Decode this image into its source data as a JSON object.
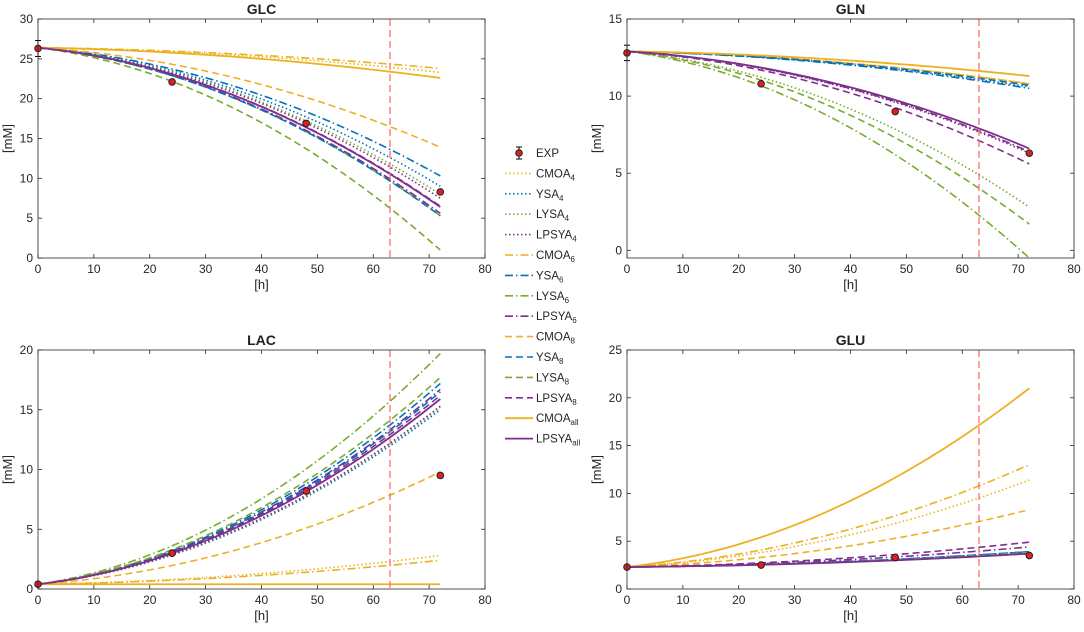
{
  "x_label": "[h]",
  "y_label": "[mM]",
  "x_ticks": [
    0,
    10,
    20,
    30,
    40,
    50,
    60,
    70,
    80
  ],
  "xlim": [
    0,
    80
  ],
  "vline_x": 63,
  "vline_color": "#ff6e6e",
  "exp_marker_color": "#e02020",
  "colors": {
    "cmoa": "#edb120",
    "ysa": "#0072bd",
    "lysa": "#77ac30",
    "lpsya": "#7e2f8e"
  },
  "legend": [
    {
      "base": "EXP",
      "sub": "",
      "color": "#e02020",
      "style": "marker"
    },
    {
      "base": "CMOA",
      "sub": "4",
      "color": "#edb120",
      "style": "dot"
    },
    {
      "base": "YSA",
      "sub": "4",
      "color": "#0072bd",
      "style": "dot"
    },
    {
      "base": "LYSA",
      "sub": "4",
      "color": "#77ac30",
      "style": "dot"
    },
    {
      "base": "LPSYA",
      "sub": "4",
      "color": "#7e2f8e",
      "style": "dot"
    },
    {
      "base": "CMOA",
      "sub": "6",
      "color": "#edb120",
      "style": "dashdot"
    },
    {
      "base": "YSA",
      "sub": "6",
      "color": "#0072bd",
      "style": "dashdot"
    },
    {
      "base": "LYSA",
      "sub": "6",
      "color": "#77ac30",
      "style": "dashdot"
    },
    {
      "base": "LPSYA",
      "sub": "6",
      "color": "#7e2f8e",
      "style": "dashdot"
    },
    {
      "base": "CMOA",
      "sub": "8",
      "color": "#edb120",
      "style": "dash"
    },
    {
      "base": "YSA",
      "sub": "8",
      "color": "#0072bd",
      "style": "dash"
    },
    {
      "base": "LYSA",
      "sub": "8",
      "color": "#77ac30",
      "style": "dash"
    },
    {
      "base": "LPSYA",
      "sub": "8",
      "color": "#7e2f8e",
      "style": "dash"
    },
    {
      "base": "CMOA",
      "sub": "all",
      "color": "#edb120",
      "style": "solid"
    },
    {
      "base": "LPSYA",
      "sub": "all",
      "color": "#7e2f8e",
      "style": "solid"
    }
  ],
  "chart_data": [
    {
      "type": "line",
      "title": "GLC",
      "xlabel": "[h]",
      "ylabel": "[mM]",
      "ylim": [
        0,
        30
      ],
      "y_ticks": [
        0,
        5,
        10,
        15,
        20,
        25,
        30
      ],
      "x": [
        0,
        72
      ],
      "exp": [
        {
          "x": 0,
          "y": 26.3,
          "err": 1.0
        },
        {
          "x": 24,
          "y": 22.1,
          "err": 0
        },
        {
          "x": 48,
          "y": 16.9,
          "err": 0
        },
        {
          "x": 72,
          "y": 8.3,
          "err": 0
        }
      ],
      "series": [
        {
          "name": "CMOA4",
          "model": "CMOA",
          "style": "dot",
          "values": [
            26.4,
            23.3
          ]
        },
        {
          "name": "YSA4",
          "model": "YSA",
          "style": "dot",
          "values": [
            26.4,
            9.0
          ]
        },
        {
          "name": "LYSA4",
          "model": "LYSA",
          "style": "dot",
          "values": [
            26.4,
            8.0
          ]
        },
        {
          "name": "LPSYA4",
          "model": "LPSYA",
          "style": "dot",
          "values": [
            26.4,
            7.5
          ]
        },
        {
          "name": "CMOA6",
          "model": "CMOA",
          "style": "dashdot",
          "values": [
            26.4,
            23.8
          ]
        },
        {
          "name": "YSA6",
          "model": "YSA",
          "style": "dashdot",
          "values": [
            26.4,
            10.3
          ]
        },
        {
          "name": "LYSA6",
          "model": "LYSA",
          "style": "dashdot",
          "values": [
            26.4,
            5.3
          ]
        },
        {
          "name": "LPSYA6",
          "model": "LPSYA",
          "style": "dashdot",
          "values": [
            26.4,
            5.6
          ]
        },
        {
          "name": "CMOA8",
          "model": "CMOA",
          "style": "dash",
          "values": [
            26.4,
            13.9
          ]
        },
        {
          "name": "YSA8",
          "model": "YSA",
          "style": "dash",
          "values": [
            26.4,
            5.3
          ]
        },
        {
          "name": "LYSA8",
          "model": "LYSA",
          "style": "dash",
          "values": [
            26.4,
            1.0
          ]
        },
        {
          "name": "LPSYA8",
          "model": "LPSYA",
          "style": "dash",
          "values": [
            26.4,
            6.5
          ]
        },
        {
          "name": "CMOAall",
          "model": "CMOA",
          "style": "solid",
          "values": [
            26.4,
            22.6
          ]
        },
        {
          "name": "LPSYAall",
          "model": "LPSYA",
          "style": "solid",
          "values": [
            26.4,
            6.4
          ]
        }
      ]
    },
    {
      "type": "line",
      "title": "GLN",
      "xlabel": "[h]",
      "ylabel": "[mM]",
      "ylim": [
        -0.5,
        15
      ],
      "y_ticks": [
        0,
        5,
        10,
        15
      ],
      "x": [
        0,
        72
      ],
      "exp": [
        {
          "x": 0,
          "y": 12.8,
          "err": 0.5
        },
        {
          "x": 24,
          "y": 10.8,
          "err": 0
        },
        {
          "x": 48,
          "y": 9.0,
          "err": 0
        },
        {
          "x": 72,
          "y": 6.3,
          "err": 0
        }
      ],
      "series": [
        {
          "name": "CMOA4",
          "model": "CMOA",
          "style": "dot",
          "values": [
            12.9,
            10.8
          ]
        },
        {
          "name": "YSA4",
          "model": "YSA",
          "style": "dot",
          "values": [
            12.9,
            10.6
          ]
        },
        {
          "name": "LYSA4",
          "model": "LYSA",
          "style": "dot",
          "values": [
            12.9,
            2.8
          ]
        },
        {
          "name": "LPSYA4",
          "model": "LPSYA",
          "style": "dot",
          "values": [
            12.9,
            6.3
          ]
        },
        {
          "name": "CMOA6",
          "model": "CMOA",
          "style": "dashdot",
          "values": [
            12.9,
            10.8
          ]
        },
        {
          "name": "YSA6",
          "model": "YSA",
          "style": "dashdot",
          "values": [
            12.9,
            10.5
          ]
        },
        {
          "name": "LYSA6",
          "model": "LYSA",
          "style": "dashdot",
          "values": [
            12.9,
            -0.5
          ]
        },
        {
          "name": "LPSYA6",
          "model": "LPSYA",
          "style": "dashdot",
          "values": [
            12.9,
            6.4
          ]
        },
        {
          "name": "CMOA8",
          "model": "CMOA",
          "style": "dash",
          "values": [
            12.9,
            10.8
          ]
        },
        {
          "name": "YSA8",
          "model": "YSA",
          "style": "dash",
          "values": [
            12.9,
            10.7
          ]
        },
        {
          "name": "LYSA8",
          "model": "LYSA",
          "style": "dash",
          "values": [
            12.9,
            1.7
          ]
        },
        {
          "name": "LPSYA8",
          "model": "LPSYA",
          "style": "dash",
          "values": [
            12.9,
            5.6
          ]
        },
        {
          "name": "CMOAall",
          "model": "CMOA",
          "style": "solid",
          "values": [
            12.9,
            11.3
          ]
        },
        {
          "name": "LPSYAall",
          "model": "LPSYA",
          "style": "solid",
          "values": [
            12.9,
            6.6
          ]
        }
      ]
    },
    {
      "type": "line",
      "title": "LAC",
      "xlabel": "[h]",
      "ylabel": "[mM]",
      "ylim": [
        0,
        20
      ],
      "y_ticks": [
        0,
        5,
        10,
        15,
        20
      ],
      "x": [
        0,
        72
      ],
      "exp": [
        {
          "x": 0,
          "y": 0.4,
          "err": 0
        },
        {
          "x": 24,
          "y": 3.0,
          "err": 0
        },
        {
          "x": 48,
          "y": 8.2,
          "err": 0
        },
        {
          "x": 72,
          "y": 9.5,
          "err": 0.2
        }
      ],
      "series": [
        {
          "name": "CMOA4",
          "model": "CMOA",
          "style": "dot",
          "values": [
            0.4,
            2.8
          ]
        },
        {
          "name": "YSA4",
          "model": "YSA",
          "style": "dot",
          "values": [
            0.4,
            15.0
          ]
        },
        {
          "name": "LYSA4",
          "model": "LYSA",
          "style": "dot",
          "values": [
            0.4,
            15.2
          ]
        },
        {
          "name": "LPSYA4",
          "model": "LPSYA",
          "style": "dot",
          "values": [
            0.4,
            15.3
          ]
        },
        {
          "name": "CMOA6",
          "model": "CMOA",
          "style": "dashdot",
          "values": [
            0.4,
            2.4
          ]
        },
        {
          "name": "YSA6",
          "model": "YSA",
          "style": "dashdot",
          "values": [
            0.4,
            17.2
          ]
        },
        {
          "name": "LYSA6",
          "model": "LYSA",
          "style": "dashdot",
          "values": [
            0.4,
            19.7
          ]
        },
        {
          "name": "LPSYA6",
          "model": "LPSYA",
          "style": "dashdot",
          "values": [
            0.4,
            16.7
          ]
        },
        {
          "name": "CMOA8",
          "model": "CMOA",
          "style": "dash",
          "values": [
            0.4,
            9.8
          ]
        },
        {
          "name": "YSA8",
          "model": "YSA",
          "style": "dash",
          "values": [
            0.4,
            16.5
          ]
        },
        {
          "name": "LYSA8",
          "model": "LYSA",
          "style": "dash",
          "values": [
            0.4,
            17.7
          ]
        },
        {
          "name": "LPSYA8",
          "model": "LPSYA",
          "style": "dash",
          "values": [
            0.4,
            16.2
          ]
        },
        {
          "name": "CMOAall",
          "model": "CMOA",
          "style": "solid",
          "values": [
            0.4,
            0.4
          ]
        },
        {
          "name": "LPSYAall",
          "model": "LPSYA",
          "style": "solid",
          "values": [
            0.4,
            15.9
          ]
        }
      ]
    },
    {
      "type": "line",
      "title": "GLU",
      "xlabel": "[h]",
      "ylabel": "[mM]",
      "ylim": [
        0,
        25
      ],
      "y_ticks": [
        0,
        5,
        10,
        15,
        20,
        25
      ],
      "x": [
        0,
        72
      ],
      "exp": [
        {
          "x": 0,
          "y": 2.3,
          "err": 0
        },
        {
          "x": 24,
          "y": 2.5,
          "err": 0
        },
        {
          "x": 48,
          "y": 3.3,
          "err": 0
        },
        {
          "x": 72,
          "y": 3.5,
          "err": 0
        }
      ],
      "series": [
        {
          "name": "CMOA4",
          "model": "CMOA",
          "style": "dot",
          "values": [
            2.3,
            11.4
          ]
        },
        {
          "name": "YSA4",
          "model": "YSA",
          "style": "dot",
          "values": [
            2.3,
            3.8
          ]
        },
        {
          "name": "LYSA4",
          "model": "LYSA",
          "style": "dot",
          "values": [
            2.3,
            3.8
          ]
        },
        {
          "name": "LPSYA4",
          "model": "LPSYA",
          "style": "dot",
          "values": [
            2.3,
            3.9
          ]
        },
        {
          "name": "CMOA6",
          "model": "CMOA",
          "style": "dashdot",
          "values": [
            2.3,
            13.0
          ]
        },
        {
          "name": "YSA6",
          "model": "YSA",
          "style": "dashdot",
          "values": [
            2.3,
            3.9
          ]
        },
        {
          "name": "LYSA6",
          "model": "LYSA",
          "style": "dashdot",
          "values": [
            2.3,
            3.7
          ]
        },
        {
          "name": "LPSYA6",
          "model": "LPSYA",
          "style": "dashdot",
          "values": [
            2.3,
            4.4
          ]
        },
        {
          "name": "CMOA8",
          "model": "CMOA",
          "style": "dash",
          "values": [
            2.3,
            8.3
          ]
        },
        {
          "name": "YSA8",
          "model": "YSA",
          "style": "dash",
          "values": [
            2.3,
            3.9
          ]
        },
        {
          "name": "LYSA8",
          "model": "LYSA",
          "style": "dash",
          "values": [
            2.3,
            3.8
          ]
        },
        {
          "name": "LPSYA8",
          "model": "LPSYA",
          "style": "dash",
          "values": [
            2.3,
            4.9
          ]
        },
        {
          "name": "CMOAall",
          "model": "CMOA",
          "style": "solid",
          "values": [
            2.3,
            21.0
          ]
        },
        {
          "name": "LPSYAall",
          "model": "LPSYA",
          "style": "solid",
          "values": [
            2.3,
            3.7
          ]
        }
      ]
    }
  ]
}
